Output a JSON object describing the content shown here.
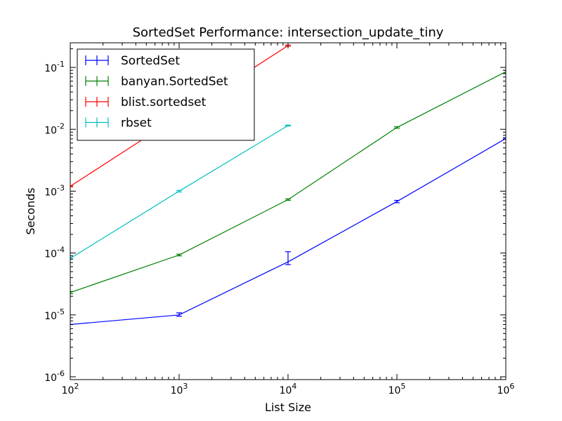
{
  "chart_data": {
    "type": "line",
    "title": "SortedSet Performance: intersection_update_tiny",
    "xlabel": "List Size",
    "ylabel": "Seconds",
    "xscale": "log",
    "yscale": "log",
    "xlim": [
      100,
      1000000
    ],
    "ylim": [
      9e-07,
      0.25
    ],
    "x_ticks": [
      {
        "value": 100,
        "base": "10",
        "exp": "2"
      },
      {
        "value": 1000,
        "base": "10",
        "exp": "3"
      },
      {
        "value": 10000,
        "base": "10",
        "exp": "4"
      },
      {
        "value": 100000,
        "base": "10",
        "exp": "5"
      },
      {
        "value": 1000000,
        "base": "10",
        "exp": "6"
      }
    ],
    "y_ticks": [
      {
        "value": 1e-06,
        "base": "10",
        "exp": "-6"
      },
      {
        "value": 1e-05,
        "base": "10",
        "exp": "-5"
      },
      {
        "value": 0.0001,
        "base": "10",
        "exp": "-4"
      },
      {
        "value": 0.001,
        "base": "10",
        "exp": "-3"
      },
      {
        "value": 0.01,
        "base": "10",
        "exp": "-2"
      },
      {
        "value": 0.1,
        "base": "10",
        "exp": "-1"
      }
    ],
    "grid": false,
    "legend_position": "top-left",
    "series": [
      {
        "name": "SortedSet",
        "color": "#0000ff",
        "x": [
          100,
          1000,
          10000,
          100000,
          1000000
        ],
        "y": [
          7e-06,
          1e-05,
          7.2e-05,
          0.00068,
          0.0071
        ],
        "err_low": [
          7e-06,
          9.5e-06,
          6.5e-05,
          0.00065,
          0.0069
        ],
        "err_high": [
          7e-06,
          1.08e-05,
          0.000105,
          0.00071,
          0.0073
        ]
      },
      {
        "name": "banyan.SortedSet",
        "color": "#008000",
        "x": [
          100,
          1000,
          10000,
          100000,
          1000000
        ],
        "y": [
          2.3e-05,
          9.3e-05,
          0.00073,
          0.0107,
          0.085
        ],
        "err_low": [
          2.2e-05,
          9e-05,
          0.00071,
          0.0104,
          0.08
        ],
        "err_high": [
          2.4e-05,
          9.6e-05,
          0.00075,
          0.011,
          0.09
        ]
      },
      {
        "name": "blist.sortedset",
        "color": "#ff0000",
        "x": [
          100,
          1000,
          10000
        ],
        "y": [
          0.0012,
          0.0165,
          0.225
        ],
        "err_low": [
          0.00118,
          0.016,
          0.22
        ],
        "err_high": [
          0.00122,
          0.017,
          0.23
        ]
      },
      {
        "name": "rbset",
        "color": "#00bfbf",
        "x": [
          100,
          1000,
          10000
        ],
        "y": [
          8.2e-05,
          0.001,
          0.0115
        ],
        "err_low": [
          7.9e-05,
          0.00097,
          0.0113
        ],
        "err_high": [
          8.5e-05,
          0.00103,
          0.0117
        ]
      }
    ]
  }
}
